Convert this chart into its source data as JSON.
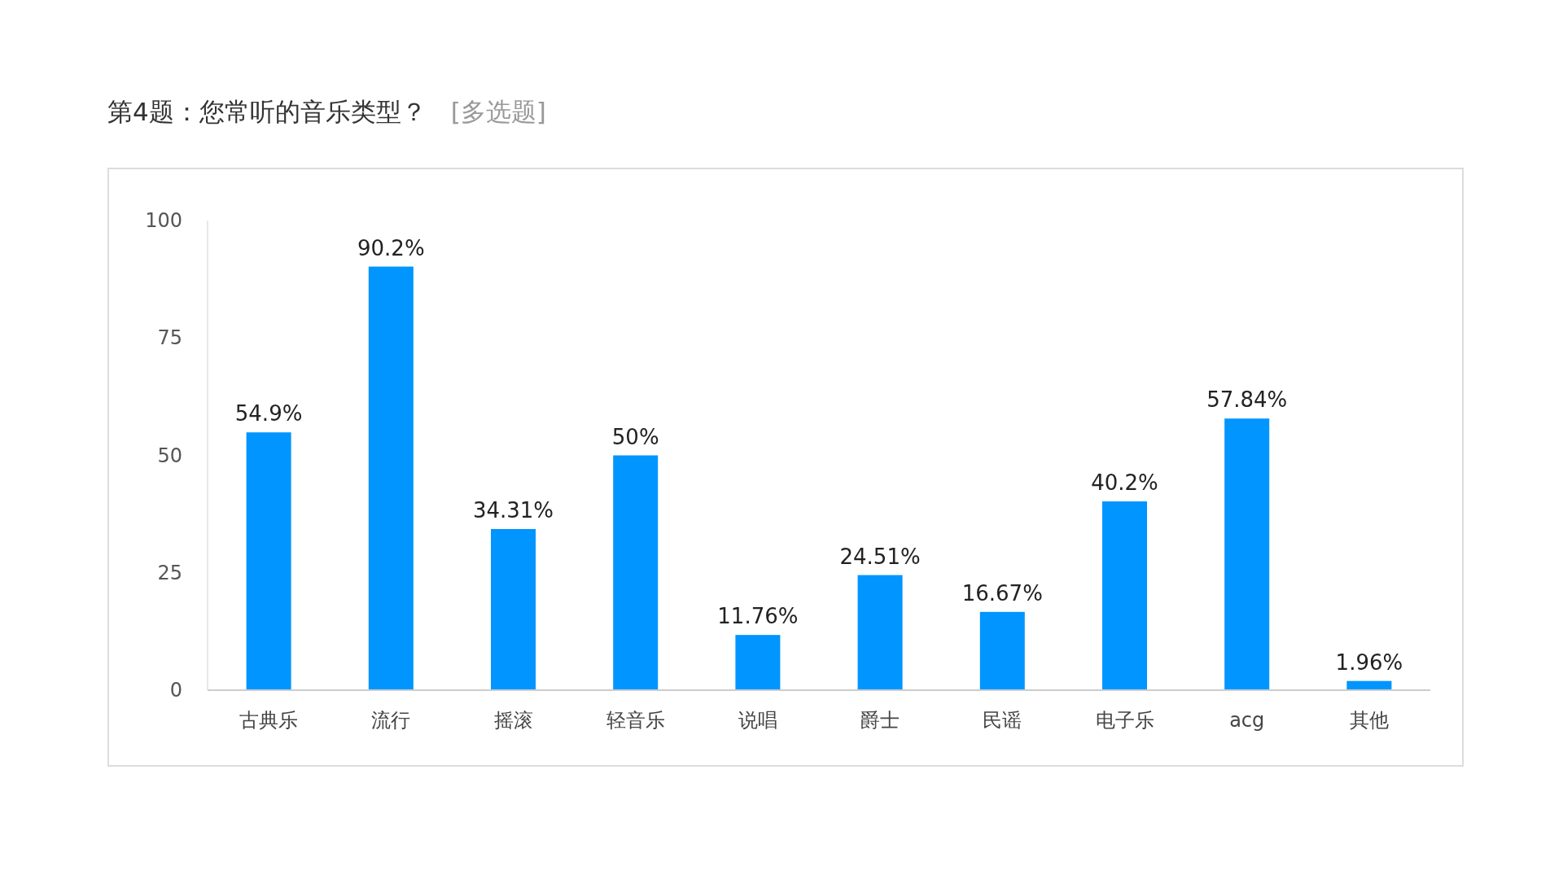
{
  "chart_data": {
    "type": "bar",
    "title": "第4题：您常听的音乐类型？",
    "subtitle": "[多选题]",
    "categories": [
      "古典乐",
      "流行",
      "摇滚",
      "轻音乐",
      "说唱",
      "爵士",
      "民谣",
      "电子乐",
      "acg",
      "其他"
    ],
    "values": [
      54.9,
      90.2,
      34.31,
      50,
      11.76,
      24.51,
      16.67,
      40.2,
      57.84,
      1.96
    ],
    "value_labels": [
      "54.9%",
      "90.2%",
      "34.31%",
      "50%",
      "11.76%",
      "24.51%",
      "16.67%",
      "40.2%",
      "57.84%",
      "1.96%"
    ],
    "color": "#0095ff",
    "ylim": [
      0,
      100
    ],
    "yticks": [
      0,
      25,
      50,
      75,
      100
    ],
    "grid": false
  }
}
